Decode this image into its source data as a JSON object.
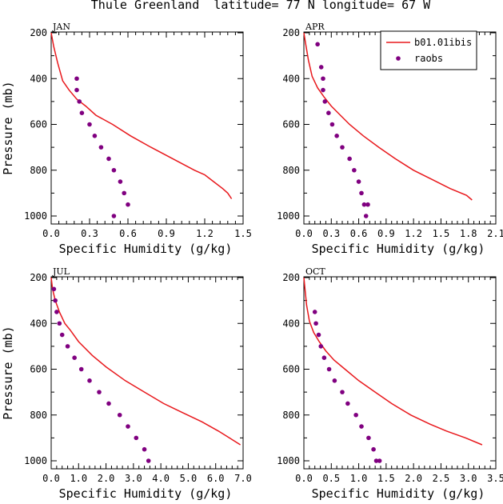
{
  "title": "Thule Greenland  latitude= 77 N longitude= 67 W",
  "legend": {
    "model": "b01.01ibis",
    "obs": "raobs"
  },
  "colors": {
    "model": "#e8181c",
    "obs": "#800080",
    "axes": "#000000"
  },
  "chart_data": [
    {
      "type": "line",
      "panel": "JAN",
      "xlabel": "Specific Humidity (g/kg)",
      "ylabel": "Pressure (mb)",
      "xlim": [
        0,
        1.5
      ],
      "ylim": [
        1000,
        200
      ],
      "xticks": [
        "0.0",
        "0.3",
        "0.6",
        "0.9",
        "1.2",
        "1.5"
      ],
      "yticks": [
        "200",
        "400",
        "600",
        "800",
        "1000"
      ],
      "series": [
        {
          "name": "b01.01ibis",
          "kind": "line",
          "x": [
            0.0,
            0.02,
            0.05,
            0.09,
            0.14,
            0.2,
            0.27,
            0.35,
            0.48,
            0.62,
            0.78,
            0.95,
            1.12,
            1.2,
            1.27,
            1.34,
            1.38,
            1.41
          ],
          "y": [
            200,
            260,
            330,
            410,
            450,
            490,
            520,
            560,
            600,
            650,
            700,
            750,
            800,
            820,
            850,
            880,
            900,
            925
          ]
        },
        {
          "name": "raobs",
          "kind": "scatter",
          "x": [
            0.2,
            0.2,
            0.22,
            0.24,
            0.3,
            0.34,
            0.39,
            0.45,
            0.49,
            0.54,
            0.57,
            0.6,
            0.49
          ],
          "y": [
            400,
            450,
            500,
            550,
            600,
            650,
            700,
            750,
            800,
            850,
            900,
            950,
            1000
          ]
        }
      ]
    },
    {
      "type": "line",
      "panel": "APR",
      "xlabel": "Specific Humidity (g/kg)",
      "ylabel": "",
      "xlim": [
        0,
        2.1
      ],
      "ylim": [
        1000,
        200
      ],
      "xticks": [
        "0.0",
        "0.3",
        "0.6",
        "0.9",
        "1.2",
        "1.5",
        "1.8",
        "2.1"
      ],
      "yticks": [
        "200",
        "400",
        "600",
        "800",
        "1000"
      ],
      "series": [
        {
          "name": "b01.01ibis",
          "kind": "line",
          "x": [
            0.0,
            0.02,
            0.05,
            0.09,
            0.15,
            0.22,
            0.3,
            0.4,
            0.5,
            0.65,
            0.82,
            1.0,
            1.2,
            1.4,
            1.6,
            1.78,
            1.84
          ],
          "y": [
            200,
            250,
            320,
            390,
            440,
            480,
            520,
            560,
            600,
            650,
            700,
            750,
            800,
            840,
            880,
            910,
            930
          ]
        },
        {
          "name": "raobs",
          "kind": "scatter",
          "x": [
            0.15,
            0.19,
            0.21,
            0.21,
            0.23,
            0.27,
            0.31,
            0.36,
            0.42,
            0.5,
            0.55,
            0.6,
            0.63,
            0.66,
            0.7,
            0.68
          ],
          "y": [
            250,
            350,
            400,
            450,
            500,
            550,
            600,
            650,
            700,
            750,
            800,
            850,
            900,
            950,
            950,
            1000
          ]
        }
      ]
    },
    {
      "type": "line",
      "panel": "JUL",
      "xlabel": "Specific Humidity (g/kg)",
      "ylabel": "Pressure (mb)",
      "xlim": [
        0,
        7
      ],
      "ylim": [
        1000,
        200
      ],
      "xticks": [
        "0.0",
        "1.0",
        "2.0",
        "3.0",
        "4.0",
        "5.0",
        "6.0",
        "7.0"
      ],
      "yticks": [
        "200",
        "400",
        "600",
        "800",
        "1000"
      ],
      "series": [
        {
          "name": "b01.01ibis",
          "kind": "line",
          "x": [
            0.0,
            0.05,
            0.15,
            0.3,
            0.5,
            0.7,
            1.0,
            1.5,
            2.0,
            2.7,
            3.4,
            4.1,
            4.8,
            5.5,
            6.1,
            6.5,
            6.9
          ],
          "y": [
            200,
            250,
            300,
            350,
            400,
            430,
            480,
            540,
            590,
            650,
            700,
            750,
            790,
            830,
            870,
            900,
            930
          ]
        },
        {
          "name": "raobs",
          "kind": "scatter",
          "x": [
            0.1,
            0.15,
            0.2,
            0.3,
            0.4,
            0.6,
            0.85,
            1.1,
            1.4,
            1.75,
            2.1,
            2.5,
            2.8,
            3.1,
            3.4,
            3.55
          ],
          "y": [
            250,
            300,
            350,
            400,
            450,
            500,
            550,
            600,
            650,
            700,
            750,
            800,
            850,
            900,
            950,
            1000
          ]
        }
      ]
    },
    {
      "type": "line",
      "panel": "OCT",
      "xlabel": "Specific Humidity (g/kg)",
      "ylabel": "",
      "xlim": [
        0,
        3.5
      ],
      "ylim": [
        1000,
        200
      ],
      "xticks": [
        "0.0",
        "0.5",
        "1.0",
        "1.5",
        "2.0",
        "2.5",
        "3.0",
        "3.5"
      ],
      "yticks": [
        "200",
        "400",
        "600",
        "800",
        "1000"
      ],
      "series": [
        {
          "name": "b01.01ibis",
          "kind": "line",
          "x": [
            0.0,
            0.02,
            0.05,
            0.1,
            0.18,
            0.28,
            0.4,
            0.55,
            0.75,
            1.0,
            1.3,
            1.6,
            1.95,
            2.3,
            2.6,
            2.95,
            3.25
          ],
          "y": [
            200,
            250,
            320,
            390,
            440,
            480,
            520,
            560,
            600,
            650,
            700,
            750,
            800,
            840,
            870,
            900,
            930
          ]
        },
        {
          "name": "raobs",
          "kind": "scatter",
          "x": [
            0.2,
            0.22,
            0.27,
            0.31,
            0.37,
            0.46,
            0.56,
            0.7,
            0.8,
            0.95,
            1.05,
            1.18,
            1.27,
            1.32,
            1.38
          ],
          "y": [
            350,
            400,
            450,
            500,
            550,
            600,
            650,
            700,
            750,
            800,
            850,
            900,
            950,
            1000,
            1000
          ]
        }
      ]
    }
  ]
}
